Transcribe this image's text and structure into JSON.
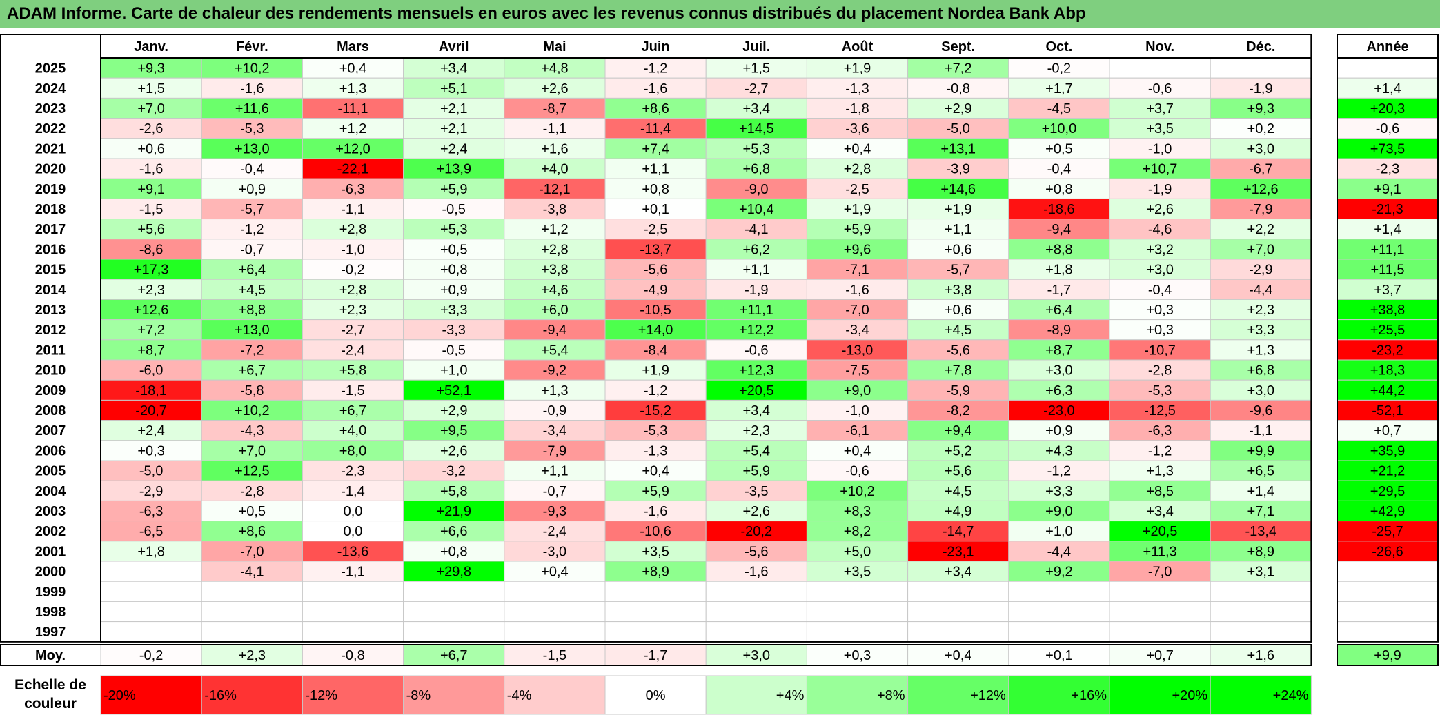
{
  "title": "ADAM Informe. Carte de chaleur des rendements mensuels en euros avec les revenus connus distribués du placement Nordea Bank Abp",
  "chart_data": {
    "type": "heatmap",
    "title": "ADAM Informe. Carte de chaleur des rendements mensuels en euros avec les revenus connus distribués du placement Nordea Bank Abp",
    "columns": [
      "Janv.",
      "Févr.",
      "Mars",
      "Avril",
      "Mai",
      "Juin",
      "Juil.",
      "Août",
      "Sept.",
      "Oct.",
      "Nov.",
      "Déc."
    ],
    "annual_header": "Année",
    "rows": [
      {
        "year": "2025",
        "values": [
          "+9,3",
          "+10,2",
          "+0,4",
          "+3,4",
          "+4,8",
          "-1,2",
          "+1,5",
          "+1,9",
          "+7,2",
          "-0,2",
          "",
          ""
        ],
        "annual": ""
      },
      {
        "year": "2024",
        "values": [
          "+1,5",
          "-1,6",
          "+1,3",
          "+5,1",
          "+2,6",
          "-1,6",
          "-2,7",
          "-1,3",
          "-0,8",
          "+1,7",
          "-0,6",
          "-1,9"
        ],
        "annual": "+1,4"
      },
      {
        "year": "2023",
        "values": [
          "+7,0",
          "+11,6",
          "-11,1",
          "+2,1",
          "-8,7",
          "+8,6",
          "+3,4",
          "-1,8",
          "+2,9",
          "-4,5",
          "+3,7",
          "+9,3"
        ],
        "annual": "+20,3"
      },
      {
        "year": "2022",
        "values": [
          "-2,6",
          "-5,3",
          "+1,2",
          "+2,1",
          "-1,1",
          "-11,4",
          "+14,5",
          "-3,6",
          "-5,0",
          "+10,0",
          "+3,5",
          "+0,2"
        ],
        "annual": "-0,6"
      },
      {
        "year": "2021",
        "values": [
          "+0,6",
          "+13,0",
          "+12,0",
          "+2,4",
          "+1,6",
          "+7,4",
          "+5,3",
          "+0,4",
          "+13,1",
          "+0,5",
          "-1,0",
          "+3,0"
        ],
        "annual": "+73,5"
      },
      {
        "year": "2020",
        "values": [
          "-1,6",
          "-0,4",
          "-22,1",
          "+13,9",
          "+4,0",
          "+1,1",
          "+6,8",
          "+2,8",
          "-3,9",
          "-0,4",
          "+10,7",
          "-6,7"
        ],
        "annual": "-2,3"
      },
      {
        "year": "2019",
        "values": [
          "+9,1",
          "+0,9",
          "-6,3",
          "+5,9",
          "-12,1",
          "+0,8",
          "-9,0",
          "-2,5",
          "+14,6",
          "+0,8",
          "-1,9",
          "+12,6"
        ],
        "annual": "+9,1"
      },
      {
        "year": "2018",
        "values": [
          "-1,5",
          "-5,7",
          "-1,1",
          "-0,5",
          "-3,8",
          "+0,1",
          "+10,4",
          "+1,9",
          "+1,9",
          "-18,6",
          "+2,6",
          "-7,9"
        ],
        "annual": "-21,3"
      },
      {
        "year": "2017",
        "values": [
          "+5,6",
          "-1,2",
          "+2,8",
          "+5,3",
          "+1,2",
          "-2,5",
          "-4,1",
          "+5,9",
          "+1,1",
          "-9,4",
          "-4,6",
          "+2,2"
        ],
        "annual": "+1,4"
      },
      {
        "year": "2016",
        "values": [
          "-8,6",
          "-0,7",
          "-1,0",
          "+0,5",
          "+2,8",
          "-13,7",
          "+6,2",
          "+9,6",
          "+0,6",
          "+8,8",
          "+3,2",
          "+7,0"
        ],
        "annual": "+11,1"
      },
      {
        "year": "2015",
        "values": [
          "+17,3",
          "+6,4",
          "-0,2",
          "+0,8",
          "+3,8",
          "-5,6",
          "+1,1",
          "-7,1",
          "-5,7",
          "+1,8",
          "+3,0",
          "-2,9"
        ],
        "annual": "+11,5"
      },
      {
        "year": "2014",
        "values": [
          "+2,3",
          "+4,5",
          "+2,8",
          "+0,9",
          "+4,6",
          "-4,9",
          "-1,9",
          "-1,6",
          "+3,8",
          "-1,7",
          "-0,4",
          "-4,4"
        ],
        "annual": "+3,7"
      },
      {
        "year": "2013",
        "values": [
          "+12,6",
          "+8,8",
          "+2,3",
          "+3,3",
          "+6,0",
          "-10,5",
          "+11,1",
          "-7,0",
          "+0,6",
          "+6,4",
          "+0,3",
          "+2,3"
        ],
        "annual": "+38,8"
      },
      {
        "year": "2012",
        "values": [
          "+7,2",
          "+13,0",
          "-2,7",
          "-3,3",
          "-9,4",
          "+14,0",
          "+12,2",
          "-3,4",
          "+4,5",
          "-8,9",
          "+0,3",
          "+3,3"
        ],
        "annual": "+25,5"
      },
      {
        "year": "2011",
        "values": [
          "+8,7",
          "-7,2",
          "-2,4",
          "-0,5",
          "+5,4",
          "-8,4",
          "-0,6",
          "-13,0",
          "-5,6",
          "+8,7",
          "-10,7",
          "+1,3"
        ],
        "annual": "-23,2"
      },
      {
        "year": "2010",
        "values": [
          "-6,0",
          "+6,7",
          "+5,8",
          "+1,0",
          "-9,2",
          "+1,9",
          "+12,3",
          "-7,5",
          "+7,8",
          "+3,0",
          "-2,8",
          "+6,8"
        ],
        "annual": "+18,3"
      },
      {
        "year": "2009",
        "values": [
          "-18,1",
          "-5,8",
          "-1,5",
          "+52,1",
          "+1,3",
          "-1,2",
          "+20,5",
          "+9,0",
          "-5,9",
          "+6,3",
          "-5,3",
          "+3,0"
        ],
        "annual": "+44,2"
      },
      {
        "year": "2008",
        "values": [
          "-20,7",
          "+10,2",
          "+6,7",
          "+2,9",
          "-0,9",
          "-15,2",
          "+3,4",
          "-1,0",
          "-8,2",
          "-23,0",
          "-12,5",
          "-9,6"
        ],
        "annual": "-52,1"
      },
      {
        "year": "2007",
        "values": [
          "+2,4",
          "-4,3",
          "+4,0",
          "+9,5",
          "-3,4",
          "-5,3",
          "+2,3",
          "-6,1",
          "+9,4",
          "+0,9",
          "-6,3",
          "-1,1"
        ],
        "annual": "+0,7"
      },
      {
        "year": "2006",
        "values": [
          "+0,3",
          "+7,0",
          "+8,0",
          "+2,6",
          "-7,9",
          "-1,3",
          "+5,4",
          "+0,4",
          "+5,2",
          "+4,3",
          "-1,2",
          "+9,9"
        ],
        "annual": "+35,9"
      },
      {
        "year": "2005",
        "values": [
          "-5,0",
          "+12,5",
          "-2,3",
          "-3,2",
          "+1,1",
          "+0,4",
          "+5,9",
          "-0,6",
          "+5,6",
          "-1,2",
          "+1,3",
          "+6,5"
        ],
        "annual": "+21,2"
      },
      {
        "year": "2004",
        "values": [
          "-2,9",
          "-2,8",
          "-1,4",
          "+5,8",
          "-0,7",
          "+5,9",
          "-3,5",
          "+10,2",
          "+4,5",
          "+3,3",
          "+8,5",
          "+1,4"
        ],
        "annual": "+29,5"
      },
      {
        "year": "2003",
        "values": [
          "-6,3",
          "+0,5",
          "0,0",
          "+21,9",
          "-9,3",
          "-1,6",
          "+2,6",
          "+8,3",
          "+4,9",
          "+9,0",
          "+3,4",
          "+7,1"
        ],
        "annual": "+42,9"
      },
      {
        "year": "2002",
        "values": [
          "-6,5",
          "+8,6",
          "0,0",
          "+6,6",
          "-2,4",
          "-10,6",
          "-20,2",
          "+8,2",
          "-14,7",
          "+1,0",
          "+20,5",
          "-13,4"
        ],
        "annual": "-25,7"
      },
      {
        "year": "2001",
        "values": [
          "+1,8",
          "-7,0",
          "-13,6",
          "+0,8",
          "-3,0",
          "+3,5",
          "-5,6",
          "+5,0",
          "-23,1",
          "-4,4",
          "+11,3",
          "+8,9"
        ],
        "annual": "-26,6"
      },
      {
        "year": "2000",
        "values": [
          "",
          "-4,1",
          "-1,1",
          "+29,8",
          "+0,4",
          "+8,9",
          "-1,6",
          "+3,5",
          "+3,4",
          "+9,2",
          "-7,0",
          "+3,1"
        ],
        "annual": ""
      },
      {
        "year": "1999",
        "values": [
          "",
          "",
          "",
          "",
          "",
          "",
          "",
          "",
          "",
          "",
          "",
          ""
        ],
        "annual": ""
      },
      {
        "year": "1998",
        "values": [
          "",
          "",
          "",
          "",
          "",
          "",
          "",
          "",
          "",
          "",
          "",
          ""
        ],
        "annual": ""
      },
      {
        "year": "1997",
        "values": [
          "",
          "",
          "",
          "",
          "",
          "",
          "",
          "",
          "",
          "",
          "",
          ""
        ],
        "annual": ""
      }
    ],
    "average": {
      "label": "Moy.",
      "values": [
        "-0,2",
        "+2,3",
        "-0,8",
        "+6,7",
        "-1,5",
        "-1,7",
        "+3,0",
        "+0,3",
        "+0,4",
        "+0,1",
        "+0,7",
        "+1,6"
      ],
      "annual": "+9,9"
    },
    "color_scale": {
      "label": "Echelle de couleur",
      "stops": [
        {
          "label": "-20%",
          "color": "#ff0000"
        },
        {
          "label": "-16%",
          "color": "#ff3333"
        },
        {
          "label": "-12%",
          "color": "#ff6666"
        },
        {
          "label": "-8%",
          "color": "#ff9999"
        },
        {
          "label": "-4%",
          "color": "#ffcccc"
        },
        {
          "label": "0%",
          "color": "#ffffff"
        },
        {
          "label": "+4%",
          "color": "#ccffcc"
        },
        {
          "label": "+8%",
          "color": "#99ff99"
        },
        {
          "label": "+12%",
          "color": "#66ff66"
        },
        {
          "label": "+16%",
          "color": "#33ff33"
        },
        {
          "label": "+20%",
          "color": "#00ff00"
        },
        {
          "label": "+24%",
          "color": "#00ff00"
        }
      ]
    }
  }
}
